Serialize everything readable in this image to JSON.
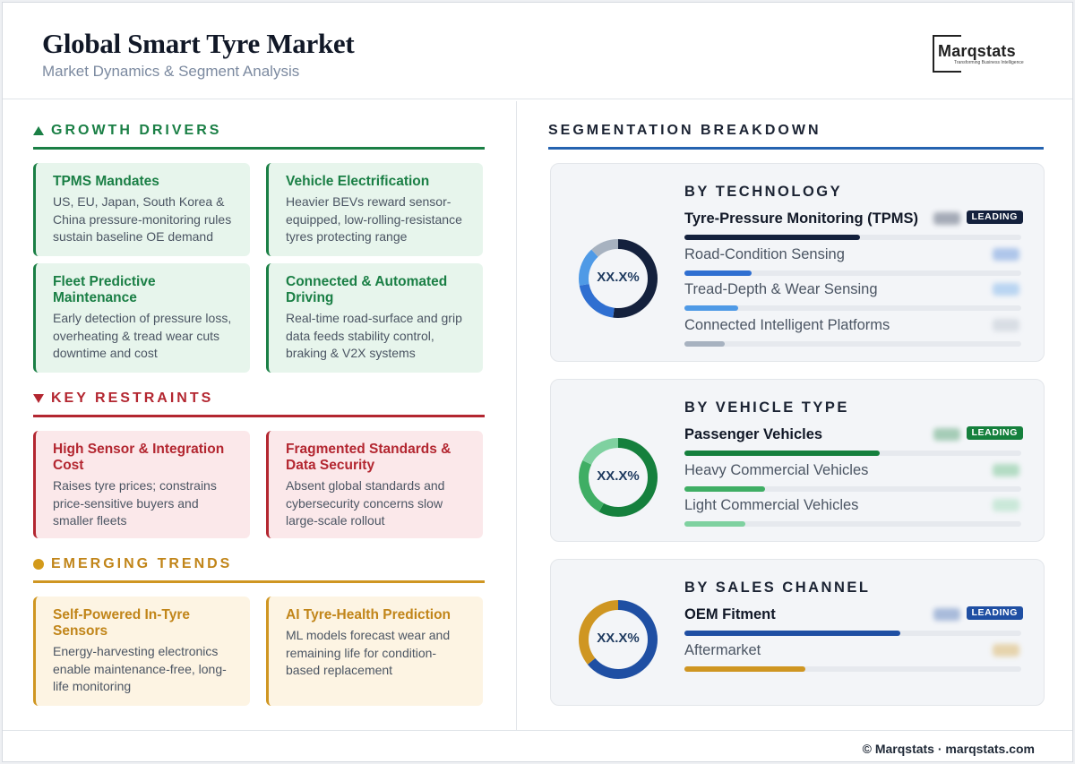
{
  "header": {
    "title": "Global Smart Tyre Market",
    "subtitle": "Market Dynamics & Segment Analysis",
    "logo": {
      "name": "Marqstats",
      "tagline": "Transforming Business Intelligence"
    }
  },
  "drivers": {
    "heading": "GROWTH DRIVERS",
    "color": "#1a7f45",
    "cards": [
      {
        "title": "TPMS Mandates",
        "text": "US, EU, Japan, South Korea & China pressure-monitoring rules sustain baseline OE demand"
      },
      {
        "title": "Vehicle Electrification",
        "text": "Heavier BEVs reward sensor-equipped, low-rolling-resistance tyres protecting range"
      },
      {
        "title": "Fleet Predictive Maintenance",
        "text": "Early detection of pressure loss, overheating & tread wear cuts downtime and cost"
      },
      {
        "title": "Connected & Automated Driving",
        "text": "Real-time road-surface and grip data feeds stability control, braking & V2X systems"
      }
    ]
  },
  "restraints": {
    "heading": "KEY RESTRAINTS",
    "color": "#b32630",
    "cards": [
      {
        "title": "High Sensor & Integration Cost",
        "text": "Raises tyre prices; constrains price-sensitive buyers and smaller fleets"
      },
      {
        "title": "Fragmented Standards & Data Security",
        "text": "Absent global standards and cybersecurity concerns slow large-scale rollout"
      }
    ]
  },
  "trends": {
    "heading": "EMERGING TRENDS",
    "color": "#c18519",
    "cards": [
      {
        "title": "Self-Powered In-Tyre Sensors",
        "text": "Energy-harvesting electronics enable maintenance-free, long-life monitoring"
      },
      {
        "title": "AI Tyre-Health Prediction",
        "text": "ML models forecast wear and remaining life for condition-based replacement"
      }
    ]
  },
  "segmentation": {
    "heading": "SEGMENTATION BREAKDOWN",
    "leading_label": "LEADING",
    "groups": [
      {
        "title": "BY TECHNOLOGY",
        "center": "XX.X%",
        "rows": [
          {
            "label": "Tyre-Pressure Monitoring (TPMS)",
            "share": 0.52,
            "color": "#14213d",
            "leading": true
          },
          {
            "label": "Road-Condition Sensing",
            "share": 0.2,
            "color": "#2f6fd1",
            "leading": false
          },
          {
            "label": "Tread-Depth & Wear Sensing",
            "share": 0.16,
            "color": "#4f9ae6",
            "leading": false
          },
          {
            "label": "Connected Intelligent Platforms",
            "share": 0.12,
            "color": "#a7b2c0",
            "leading": false
          }
        ]
      },
      {
        "title": "BY VEHICLE TYPE",
        "center": "XX.X%",
        "rows": [
          {
            "label": "Passenger Vehicles",
            "share": 0.58,
            "color": "#15803d",
            "leading": true
          },
          {
            "label": "Heavy Commercial Vehicles",
            "share": 0.24,
            "color": "#3fae64",
            "leading": false
          },
          {
            "label": "Light Commercial Vehicles",
            "share": 0.18,
            "color": "#7fd1a0",
            "leading": false
          }
        ]
      },
      {
        "title": "BY SALES CHANNEL",
        "center": "XX.X%",
        "rows": [
          {
            "label": "OEM Fitment",
            "share": 0.64,
            "color": "#1f4fa3",
            "leading": true
          },
          {
            "label": "Aftermarket",
            "share": 0.36,
            "color": "#cf9622",
            "leading": false
          }
        ]
      }
    ]
  },
  "footer": {
    "text": "© Marqstats · marqstats.com"
  }
}
